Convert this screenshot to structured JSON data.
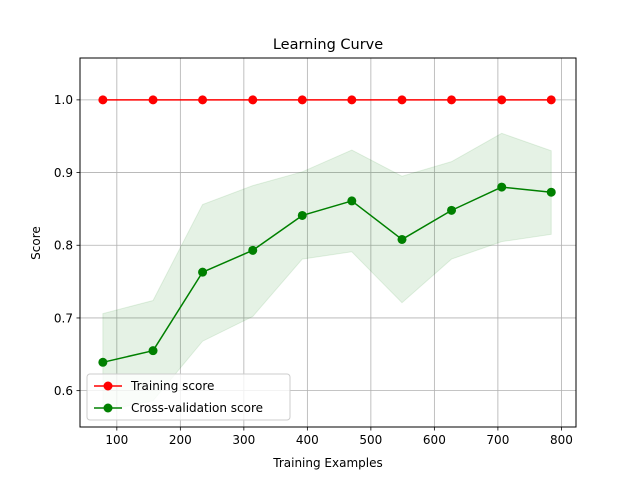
{
  "chart_data": {
    "type": "line",
    "title": "Learning Curve",
    "xlabel": "Training Examples",
    "ylabel": "Score",
    "xlim": [
      42,
      823
    ],
    "ylim": [
      0.55,
      1.0576
    ],
    "x_ticks": [
      100,
      200,
      300,
      400,
      500,
      600,
      700,
      800
    ],
    "y_ticks": [
      0.6,
      0.7,
      0.8,
      0.9,
      1.0
    ],
    "x_tick_labels": [
      "100",
      "200",
      "300",
      "400",
      "500",
      "600",
      "700",
      "800"
    ],
    "y_tick_labels": [
      "0.6",
      "0.7",
      "0.8",
      "0.9",
      "1.0"
    ],
    "grid": true,
    "legend_position": "lower-left",
    "x": [
      78,
      157,
      235,
      314,
      392,
      470,
      549,
      627,
      706,
      784
    ],
    "series": [
      {
        "name": "Training score",
        "color": "#ff0000",
        "marker": "circle",
        "values": [
          1.0,
          1.0,
          1.0,
          1.0,
          1.0,
          1.0,
          1.0,
          1.0,
          1.0,
          1.0
        ],
        "band_lower": [
          1.0,
          1.0,
          1.0,
          1.0,
          1.0,
          1.0,
          1.0,
          1.0,
          1.0,
          1.0
        ],
        "band_upper": [
          1.0,
          1.0,
          1.0,
          1.0,
          1.0,
          1.0,
          1.0,
          1.0,
          1.0,
          1.0
        ]
      },
      {
        "name": "Cross-validation score",
        "color": "#008000",
        "marker": "circle",
        "values": [
          0.639,
          0.655,
          0.763,
          0.793,
          0.841,
          0.861,
          0.808,
          0.848,
          0.88,
          0.873
        ],
        "band_lower": [
          0.572,
          0.586,
          0.668,
          0.702,
          0.781,
          0.791,
          0.721,
          0.781,
          0.805,
          0.815
        ],
        "band_upper": [
          0.706,
          0.724,
          0.856,
          0.882,
          0.901,
          0.931,
          0.895,
          0.915,
          0.954,
          0.93
        ]
      }
    ]
  }
}
